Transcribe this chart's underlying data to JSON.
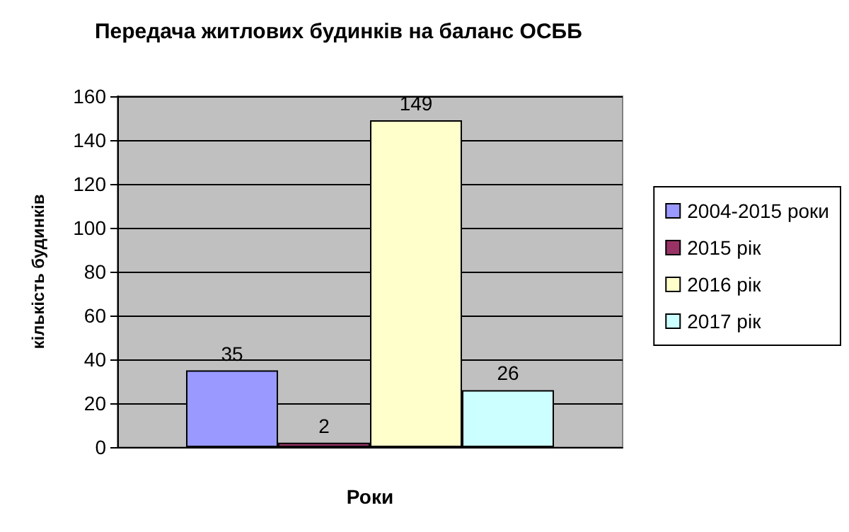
{
  "chart_data": {
    "type": "bar",
    "title": "Передача житлових будинків на баланс ОСББ",
    "xlabel": "Роки",
    "ylabel": "кількість будинків",
    "categories": [
      null
    ],
    "series": [
      {
        "name": "2004-2015 роки",
        "color": "#9999ff",
        "values": [
          35
        ]
      },
      {
        "name": "2015 рік",
        "color": "#993366",
        "values": [
          2
        ]
      },
      {
        "name": "2016 рік",
        "color": "#ffffcc",
        "values": [
          149
        ]
      },
      {
        "name": "2017 рік",
        "color": "#ccffff",
        "values": [
          26
        ]
      }
    ],
    "ylim": [
      0,
      160
    ],
    "yticks": [
      0,
      20,
      40,
      60,
      80,
      100,
      120,
      140,
      160
    ],
    "grid": "y",
    "legend": "right",
    "data_labels": true
  }
}
